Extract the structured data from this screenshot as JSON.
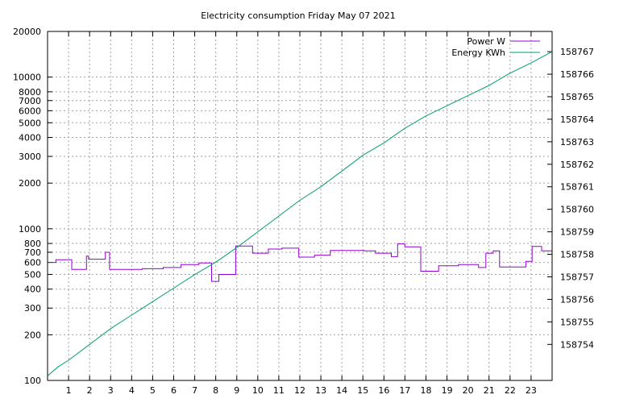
{
  "chart_data": {
    "type": "line",
    "title": "Electricity consumption Friday May 07 2021",
    "xlabel": "",
    "ylabel": "",
    "y2label": "",
    "grid": true,
    "legend_position": "top-right",
    "x": {
      "range": [
        0,
        24
      ],
      "ticks": [
        1,
        2,
        3,
        4,
        5,
        6,
        7,
        8,
        9,
        10,
        11,
        12,
        13,
        14,
        15,
        16,
        17,
        18,
        19,
        20,
        21,
        22,
        23
      ],
      "tick_labels": [
        "1",
        "2",
        "3",
        "4",
        "5",
        "6",
        "7",
        "8",
        "9",
        "10",
        "11",
        "12",
        "13",
        "14",
        "15",
        "16",
        "17",
        "18",
        "19",
        "20",
        "21",
        "22",
        "23"
      ]
    },
    "y_left": {
      "scale": "log",
      "range": [
        100,
        20000
      ],
      "ticks": [
        100,
        200,
        300,
        400,
        500,
        600,
        700,
        800,
        1000,
        2000,
        3000,
        4000,
        5000,
        6000,
        7000,
        8000,
        10000,
        20000
      ],
      "tick_labels": [
        "100",
        "200",
        "300",
        "400",
        "500",
        "600",
        "700",
        "800",
        "1000",
        "2000",
        "3000",
        "4000",
        "5000",
        "6000",
        "7000",
        "8000",
        "10000",
        "20000"
      ]
    },
    "y_right": {
      "scale": "log",
      "range": [
        158752.4,
        158767.9
      ],
      "ticks": [
        158754,
        158755,
        158756,
        158757,
        158758,
        158759,
        158760,
        158761,
        158762,
        158763,
        158764,
        158765,
        158766,
        158767
      ],
      "tick_labels": [
        "158754",
        "158755",
        "158756",
        "158757",
        "158758",
        "158759",
        "158760",
        "158761",
        "158762",
        "158763",
        "158764",
        "158765",
        "158766",
        "158767"
      ]
    },
    "series": [
      {
        "name": "Power W",
        "axis": "left",
        "color": "#9400d3",
        "style": "step",
        "points": [
          [
            0.0,
            600
          ],
          [
            0.4,
            625
          ],
          [
            1.15,
            540
          ],
          [
            1.85,
            660
          ],
          [
            1.95,
            630
          ],
          [
            2.75,
            700
          ],
          [
            2.95,
            540
          ],
          [
            4.5,
            545
          ],
          [
            5.5,
            555
          ],
          [
            6.35,
            580
          ],
          [
            7.2,
            595
          ],
          [
            7.8,
            450
          ],
          [
            8.15,
            500
          ],
          [
            8.95,
            770
          ],
          [
            9.75,
            690
          ],
          [
            10.5,
            735
          ],
          [
            11.15,
            745
          ],
          [
            11.95,
            650
          ],
          [
            12.7,
            670
          ],
          [
            13.45,
            720
          ],
          [
            15.05,
            715
          ],
          [
            15.6,
            690
          ],
          [
            16.35,
            655
          ],
          [
            16.65,
            795
          ],
          [
            17.0,
            760
          ],
          [
            17.75,
            525
          ],
          [
            18.6,
            570
          ],
          [
            19.55,
            580
          ],
          [
            20.5,
            555
          ],
          [
            20.85,
            690
          ],
          [
            21.2,
            715
          ],
          [
            21.5,
            560
          ],
          [
            22.75,
            610
          ],
          [
            23.05,
            765
          ],
          [
            23.5,
            715
          ],
          [
            24.0,
            710
          ]
        ]
      },
      {
        "name": "Energy KWh",
        "axis": "right",
        "color": "#009e73",
        "style": "line",
        "points": [
          [
            0.0,
            158752.6
          ],
          [
            0.5,
            158753.0
          ],
          [
            1.0,
            158753.3
          ],
          [
            2.0,
            158754.0
          ],
          [
            3.0,
            158754.7
          ],
          [
            4.0,
            158755.3
          ],
          [
            5.0,
            158755.9
          ],
          [
            6.0,
            158756.5
          ],
          [
            7.0,
            158757.1
          ],
          [
            8.0,
            158757.65
          ],
          [
            9.0,
            158758.3
          ],
          [
            10.0,
            158759.0
          ],
          [
            11.0,
            158759.7
          ],
          [
            12.0,
            158760.4
          ],
          [
            13.0,
            158761.0
          ],
          [
            14.0,
            158761.7
          ],
          [
            15.0,
            158762.4
          ],
          [
            16.0,
            158762.95
          ],
          [
            17.0,
            158763.6
          ],
          [
            18.0,
            158764.15
          ],
          [
            19.0,
            158764.6
          ],
          [
            20.0,
            158765.05
          ],
          [
            21.0,
            158765.5
          ],
          [
            22.0,
            158766.05
          ],
          [
            23.0,
            158766.5
          ],
          [
            24.0,
            158767.0
          ]
        ]
      }
    ]
  }
}
